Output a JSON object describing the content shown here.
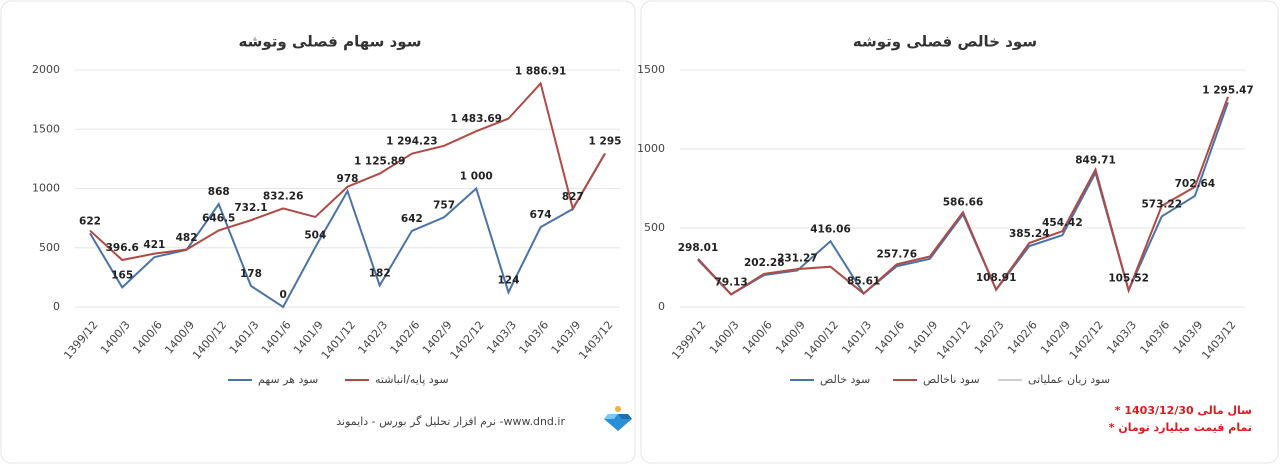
{
  "chart_data": [
    {
      "type": "line",
      "title": "سود سهام فصلی وتوشه",
      "categories": [
        "1399/12",
        "1400/3",
        "1400/6",
        "1400/9",
        "1400/12",
        "1401/3",
        "1401/6",
        "1401/9",
        "1401/12",
        "1402/3",
        "1402/6",
        "1402/9",
        "1402/12",
        "1403/3",
        "1403/6",
        "1403/9",
        "1403/12"
      ],
      "ylim": [
        0,
        2000
      ],
      "yticks": [
        0,
        500,
        1000,
        1500,
        2000
      ],
      "legend": "bottom",
      "series": [
        {
          "name": "سود هر سهم",
          "color": "#4a73a8",
          "values": [
            622,
            165,
            421,
            482,
            868,
            178,
            0,
            504,
            978,
            182,
            642,
            757,
            1000,
            124,
            674,
            827,
            1295
          ],
          "value_labels": [
            "622",
            "165",
            "421",
            "482",
            "868",
            "178",
            "0",
            "504",
            "978",
            "182",
            "642",
            "757",
            "1 000",
            "124",
            "674",
            "827",
            "1 295"
          ]
        },
        {
          "name": "سود پایه/انباشته",
          "color": "#b04a45",
          "values": [
            645,
            396.6,
            450,
            485,
            646.5,
            732.1,
            832.26,
            760,
            1015,
            1125.89,
            1294.23,
            1360,
            1483.69,
            1590,
            1886.91,
            830,
            1295
          ],
          "value_labels": [
            null,
            "396.6",
            null,
            null,
            "646.5",
            "732.1",
            "832.26",
            null,
            null,
            "1 125.89",
            "1 294.23",
            null,
            "1 483.69",
            null,
            "1 886.91",
            null,
            null
          ]
        }
      ]
    },
    {
      "type": "line",
      "title": "سود خالص فصلی وتوشه",
      "categories": [
        "1399/12",
        "1400/3",
        "1400/6",
        "1400/9",
        "1400/12",
        "1401/3",
        "1401/6",
        "1401/9",
        "1401/12",
        "1402/3",
        "1402/6",
        "1402/9",
        "1402/12",
        "1403/3",
        "1403/6",
        "1403/9",
        "1403/12"
      ],
      "ylim": [
        0,
        1500
      ],
      "yticks": [
        0,
        500,
        1000,
        1500
      ],
      "legend": "bottom",
      "series": [
        {
          "name": "سود خالص",
          "color": "#4a73a8",
          "values": [
            298.01,
            79.13,
            202.28,
            231.27,
            416.06,
            85.61,
            257.76,
            305,
            586.66,
            108.91,
            385.24,
            454.42,
            849.71,
            105.52,
            573.22,
            702.64,
            1295.47
          ],
          "value_labels": [
            "298.01",
            "79.13",
            "202.28",
            "231.27",
            "416.06",
            "85.61",
            "257.76",
            null,
            "586.66",
            "108.91",
            "385.24",
            "454.42",
            "849.71",
            "105.52",
            "573.22",
            "702.64",
            "1 295.47"
          ]
        },
        {
          "name": "سود ناخالص",
          "color": "#b04a45",
          "values": [
            305,
            80,
            210,
            240,
            255,
            85,
            270,
            320,
            600,
            110,
            405,
            480,
            870,
            105,
            640,
            760,
            1330
          ]
        },
        {
          "name": "سود زیان عملیاتی",
          "color": "#cfcfcf",
          "hidden": true
        }
      ]
    }
  ],
  "footer": {
    "credit": "نرم افزار تحلیل گر بورس - دایموند -www.dnd.ir",
    "notes": [
      "* سال مالی 1403/12/30",
      "* تمام قیمت میلیارد تومان"
    ]
  }
}
